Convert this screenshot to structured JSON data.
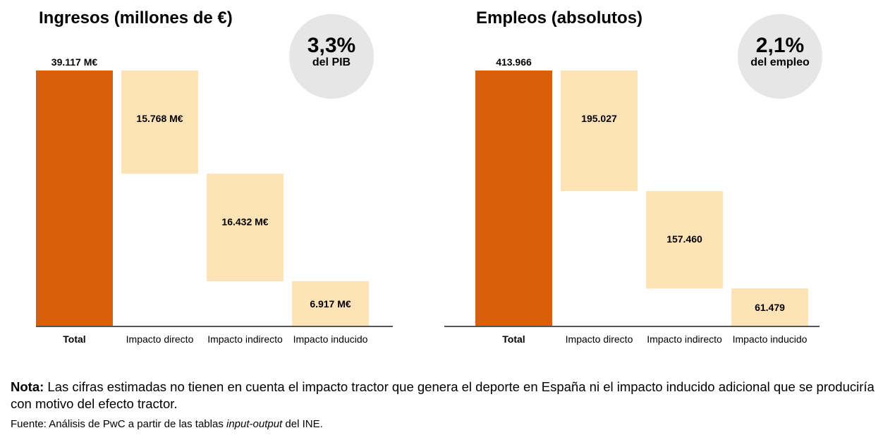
{
  "chart_data": [
    {
      "type": "waterfall",
      "title": "Ingresos (millones de €)",
      "categories": [
        "Total",
        "Impacto directo",
        "Impacto indirecto",
        "Impacto inducido"
      ],
      "values": [
        39117,
        15768,
        16432,
        6917
      ],
      "labels": [
        "39.117 M€",
        "15.768 M€",
        "16.432 M€",
        "6.917 M€"
      ],
      "highlight": {
        "value": "3,3%",
        "caption": "del PIB"
      },
      "colors": {
        "total": "#d95f0b",
        "components": "#fde3b6",
        "axis": "#555555",
        "circle": "#e6e6e6"
      }
    },
    {
      "type": "waterfall",
      "title": "Empleos (absolutos)",
      "categories": [
        "Total",
        "Impacto directo",
        "Impacto indirecto",
        "Impacto inducido"
      ],
      "values": [
        413966,
        195027,
        157460,
        61479
      ],
      "labels": [
        "413.966",
        "195.027",
        "157.460",
        "61.479"
      ],
      "highlight": {
        "value": "2,1%",
        "caption": "del empleo"
      },
      "colors": {
        "total": "#d95f0b",
        "components": "#fde3b6",
        "axis": "#555555",
        "circle": "#e6e6e6"
      }
    }
  ],
  "footer": {
    "note_label": "Nota:",
    "note_text": " Las cifras estimadas no tienen en cuenta el impacto tractor que genera el deporte en España ni el impacto inducido adicional que se produciría con motivo del efecto tractor.",
    "source_prefix": "Fuente: Análisis de PwC a partir de las tablas ",
    "source_italic": "input-output",
    "source_suffix": " del INE."
  }
}
